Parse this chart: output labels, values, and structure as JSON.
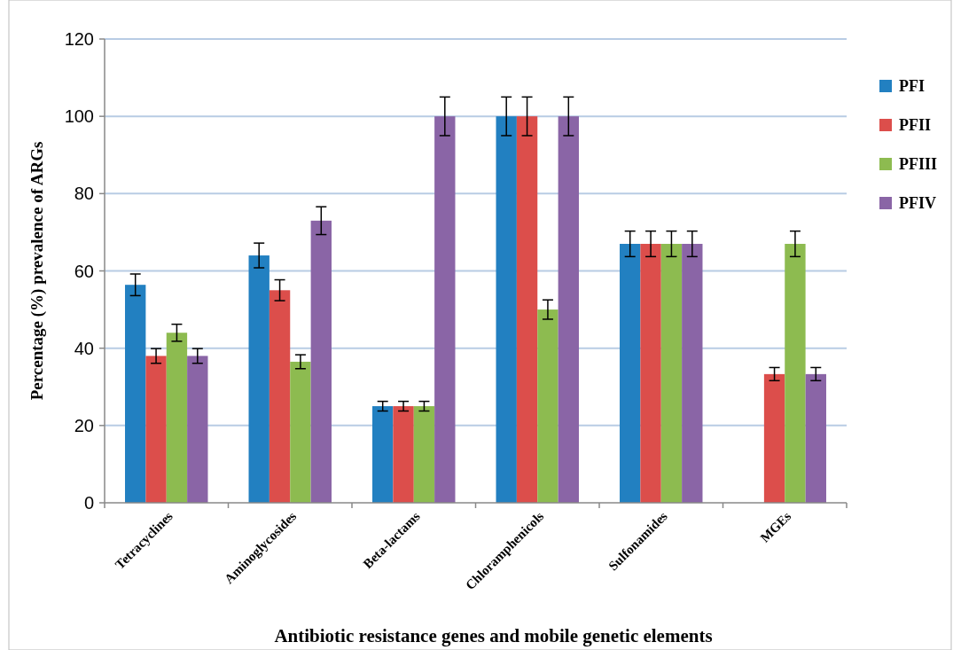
{
  "chart_data": {
    "type": "bar",
    "xlabel": "Antibiotic resistance genes and mobile genetic elements",
    "ylabel": "Percentage (%) prevalence of ARGs",
    "categories": [
      "Tetracyclines",
      "Aminoglycosides",
      "Beta-lactams",
      "Chloramphenicols",
      "Sulfonamides",
      "MGEs"
    ],
    "series": [
      {
        "name": "PFI",
        "color": "#2280c1",
        "values": [
          56.4,
          64,
          25,
          100,
          67,
          null
        ],
        "errors": [
          2.8,
          3.2,
          1.25,
          5,
          3.3,
          null
        ]
      },
      {
        "name": "PFII",
        "color": "#dc4e4b",
        "values": [
          38,
          55,
          25,
          100,
          67,
          33.3
        ],
        "errors": [
          1.9,
          2.7,
          1.25,
          5,
          3.3,
          1.7
        ]
      },
      {
        "name": "PFIII",
        "color": "#8dbb50",
        "values": [
          44,
          36.5,
          25,
          50,
          67,
          67
        ],
        "errors": [
          2.2,
          1.8,
          1.25,
          2.5,
          3.3,
          3.3
        ]
      },
      {
        "name": "PFIV",
        "color": "#8a65a6",
        "values": [
          38,
          73,
          100,
          100,
          67,
          33.3
        ],
        "errors": [
          1.9,
          3.6,
          5,
          5,
          3.3,
          1.7
        ]
      }
    ],
    "ylim": [
      0,
      120
    ],
    "yticks": [
      0,
      20,
      40,
      60,
      80,
      100,
      120
    ],
    "grid": "y",
    "legend": "right"
  }
}
